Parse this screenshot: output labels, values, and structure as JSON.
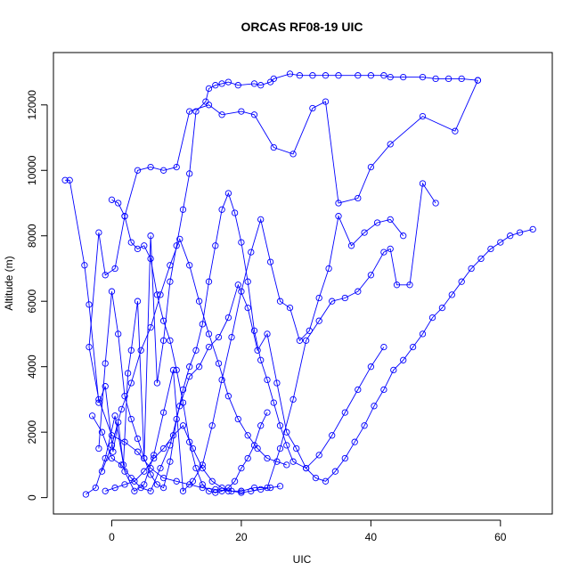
{
  "chart_data": {
    "type": "line",
    "title": "ORCAS RF08-19 UIC",
    "xlabel": "UIC",
    "ylabel": "Altitude (m)",
    "xlim": [
      -9,
      68
    ],
    "ylim": [
      -500,
      13600
    ],
    "x_ticks": [
      0,
      20,
      40,
      60
    ],
    "y_ticks": [
      0,
      2000,
      4000,
      6000,
      8000,
      10000,
      12000
    ],
    "grid": false,
    "legend": "none",
    "color": "#0000ff",
    "marker": "open-circle",
    "series": [
      {
        "x": [
          -7.2,
          -6.5,
          -4.2,
          -3.5,
          -2.0,
          -1.0,
          0.2,
          1.0,
          1.8,
          2.5,
          3.0,
          4.0,
          5.0,
          6.0,
          7.0,
          8.0,
          9.0,
          10.0,
          11.0,
          12.0,
          13.0,
          14.5,
          15.0,
          16.0,
          17.0,
          18.0,
          19.5,
          22.0,
          23.0,
          24.5,
          25.0,
          27.5,
          29.0,
          31.0,
          33.0,
          35.0,
          38.0,
          40.0,
          42.0,
          43.0,
          45.0,
          48.0,
          50.0,
          52.0,
          54.0,
          56.5
        ],
        "y": [
          9700,
          9700,
          7100,
          5900,
          2900,
          3400,
          1400,
          2300,
          1000,
          3800,
          4500,
          6000,
          1200,
          8000,
          3500,
          4800,
          6600,
          7700,
          8800,
          9900,
          11800,
          12100,
          12500,
          12600,
          12650,
          12700,
          12600,
          12650,
          12600,
          12700,
          12800,
          12950,
          12900,
          12900,
          12900,
          12900,
          12900,
          12900,
          12900,
          12850,
          12850,
          12850,
          12800,
          12800,
          12800,
          12750
        ]
      },
      {
        "x": [
          56.5,
          53.0,
          48.0,
          43.0,
          40.0,
          38.0,
          35.0,
          33.0,
          31.0,
          28.0,
          25.0,
          22.0,
          20.0,
          17.0,
          15.0,
          12.0,
          10.0,
          8.0,
          6.0,
          4.0,
          2.0,
          0.5,
          -1.0,
          -2.0,
          -3.5,
          -2.0,
          0.0,
          2.0,
          4.0,
          6.0,
          8.0,
          10.0,
          12.0,
          14.0,
          16.0,
          18.0,
          20.0
        ],
        "y": [
          12750,
          11200,
          11650,
          10800,
          10100,
          9150,
          9000,
          12100,
          11900,
          10500,
          10700,
          11700,
          11800,
          11700,
          12000,
          11800,
          10100,
          10000,
          10100,
          10000,
          8600,
          7000,
          6800,
          8100,
          4600,
          3000,
          1900,
          1700,
          1400,
          900,
          600,
          500,
          400,
          300,
          250,
          200,
          200
        ]
      },
      {
        "x": [
          20.0,
          22.0,
          24.0,
          26.0,
          28.0,
          30.0,
          32.0,
          34.0,
          36.0,
          38.0,
          40.0,
          42.0,
          43.0,
          44.0,
          46.0,
          48.0,
          50.0
        ],
        "y": [
          200,
          300,
          300,
          1500,
          3000,
          4800,
          5400,
          6000,
          6100,
          6300,
          6800,
          7500,
          7600,
          6500,
          6500,
          9600,
          9000
        ]
      },
      {
        "x": [
          -4.0,
          -2.5,
          -1.0,
          0.5,
          2.0,
          3.5,
          5.0,
          6.5,
          8.0,
          9.5,
          11.0,
          12.5,
          14.0,
          15.5,
          17.0,
          18.5,
          20.0,
          21.5,
          23.0,
          24.5,
          26.0,
          27.5,
          29.0,
          30.5,
          32.0,
          33.5,
          35.0,
          37.0,
          39.0,
          41.0,
          43.0,
          45.0
        ],
        "y": [
          100,
          300,
          1200,
          2500,
          800,
          200,
          400,
          1300,
          2600,
          3900,
          200,
          500,
          1000,
          2200,
          3600,
          4900,
          6300,
          7500,
          8500,
          7200,
          6000,
          5800,
          4800,
          5100,
          6100,
          7000,
          8600,
          7700,
          8100,
          8400,
          8500,
          8000
        ]
      },
      {
        "x": [
          -3.0,
          -1.5,
          0.0,
          1.5,
          3.0,
          4.5,
          6.0,
          7.5,
          9.0,
          10.5,
          12.0,
          13.5,
          15.0,
          16.5,
          18.0,
          19.5,
          21.0,
          22.5,
          24.0,
          25.5,
          27.0,
          28.5,
          30.0,
          31.5,
          33.0,
          34.5,
          36.0,
          37.5,
          39.0,
          40.5,
          42.0,
          43.5,
          45.0,
          46.5,
          48.0,
          49.5,
          51.0,
          52.5,
          54.0,
          55.5,
          57.0,
          58.5,
          60.0,
          61.5,
          63.0,
          65.0
        ],
        "y": [
          2500,
          2000,
          1200,
          1000,
          600,
          300,
          200,
          900,
          1600,
          2800,
          3700,
          4000,
          4600,
          4900,
          5500,
          6500,
          5800,
          4500,
          5000,
          3500,
          2000,
          1500,
          900,
          600,
          500,
          800,
          1200,
          1700,
          2200,
          2800,
          3300,
          3900,
          4200,
          4600,
          5000,
          5500,
          5800,
          6200,
          6600,
          7000,
          7300,
          7600,
          7800,
          8000,
          8100,
          8200
        ]
      },
      {
        "x": [
          -2.0,
          -1.0,
          0.0,
          1.0,
          2.0,
          3.0,
          4.0,
          5.0,
          6.0,
          7.0,
          8.0,
          9.0,
          10.0,
          11.0,
          12.0,
          13.0,
          14.0,
          15.0,
          16.0,
          17.0,
          18.0,
          19.0,
          20.0,
          21.0,
          22.0,
          23.0,
          24.0,
          25.0,
          26.0,
          27.0,
          28.0,
          30.0,
          32.0,
          34.0,
          36.0,
          38.0,
          40.0,
          42.0
        ],
        "y": [
          1500,
          4100,
          6300,
          5000,
          3100,
          2400,
          1800,
          1200,
          700,
          400,
          300,
          1100,
          2400,
          3300,
          4000,
          4500,
          5300,
          6600,
          7700,
          8800,
          9300,
          8700,
          7800,
          6600,
          5100,
          4200,
          3600,
          2900,
          2200,
          1600,
          1100,
          900,
          1300,
          1900,
          2600,
          3300,
          4000,
          4600
        ]
      },
      {
        "x": [
          -1.5,
          0.0,
          1.5,
          3.0,
          4.5,
          6.0,
          7.5,
          9.0,
          10.5,
          12.0,
          13.5,
          15.0,
          16.5,
          18.0,
          19.5,
          21.0,
          22.5,
          24.0,
          25.5,
          27.0
        ],
        "y": [
          800,
          1600,
          2700,
          3500,
          4500,
          5200,
          6200,
          7100,
          7900,
          7100,
          6000,
          5000,
          4100,
          3100,
          2400,
          1900,
          1500,
          1200,
          1100,
          1000
        ]
      },
      {
        "x": [
          -1.0,
          0.5,
          2.0,
          3.5,
          5.0,
          6.5,
          8.0,
          9.5,
          11.0,
          12.5,
          14.0,
          15.5,
          17.0,
          18.5,
          20.0,
          21.5,
          23.0,
          24.5,
          26.0
        ],
        "y": [
          200,
          300,
          400,
          500,
          800,
          1200,
          1500,
          1900,
          2200,
          1500,
          900,
          500,
          300,
          200,
          150,
          200,
          250,
          300,
          350
        ]
      },
      {
        "x": [
          0.0,
          1.0,
          2.0,
          3.0,
          4.0,
          5.0,
          6.0,
          7.0,
          8.0,
          9.0,
          10.0,
          11.0,
          12.0,
          13.0,
          14.0,
          15.0,
          16.0,
          17.0,
          18.0,
          19.0,
          20.0,
          21.0,
          22.0,
          23.0,
          24.0
        ],
        "y": [
          9100,
          9000,
          8600,
          7800,
          7600,
          7700,
          7300,
          6200,
          5400,
          4800,
          3900,
          2900,
          1700,
          900,
          400,
          200,
          150,
          200,
          300,
          500,
          900,
          1200,
          1600,
          2200,
          2600
        ]
      }
    ]
  }
}
